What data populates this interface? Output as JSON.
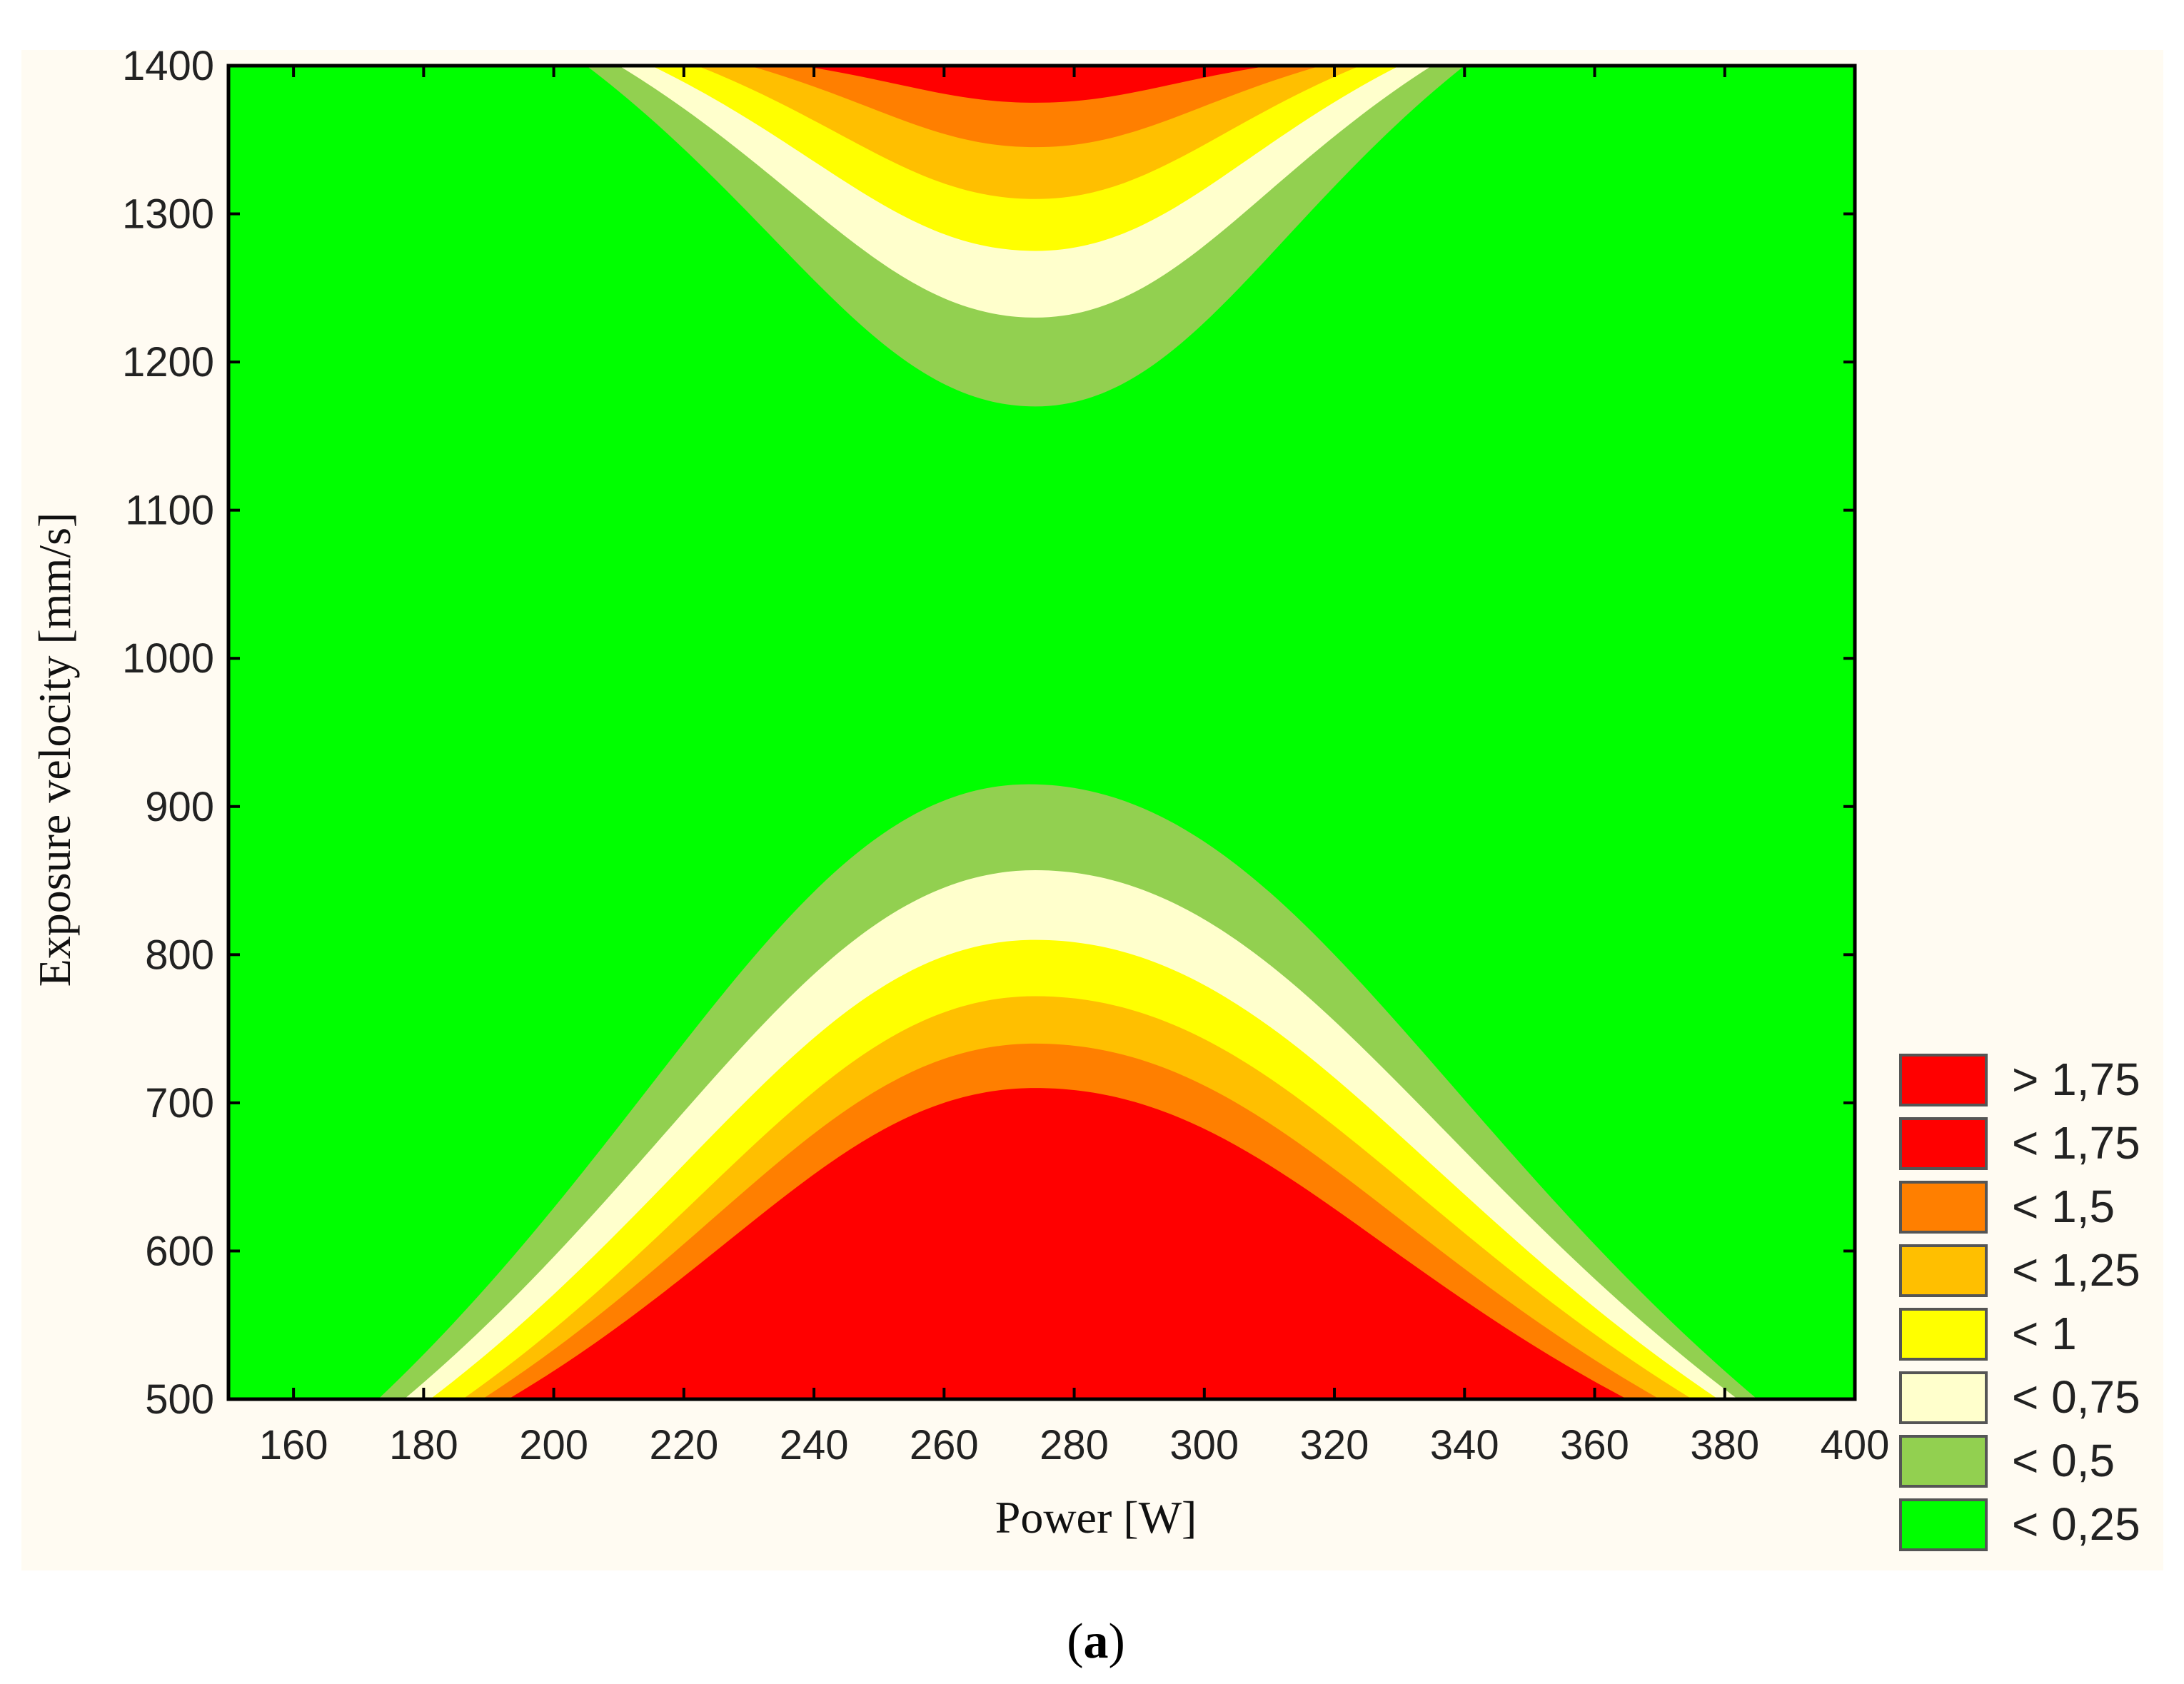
{
  "chart_data": {
    "type": "contour",
    "xlabel": "Power [W]",
    "ylabel": "Exposure velocity [mm/s]",
    "xlim": [
      150,
      400
    ],
    "ylim": [
      500,
      1400
    ],
    "x_ticks": [
      "160",
      "180",
      "200",
      "220",
      "240",
      "260",
      "280",
      "300",
      "320",
      "340",
      "360",
      "380",
      "400"
    ],
    "y_ticks": [
      "500",
      "600",
      "700",
      "800",
      "900",
      "1000",
      "1100",
      "1200",
      "1300",
      "1400"
    ],
    "legend": [
      {
        "label": "> 1,75",
        "color": "#ff0000"
      },
      {
        "label": "< 1,75",
        "color": "#ff0000"
      },
      {
        "label": "< 1,5",
        "color": "#ff7f00"
      },
      {
        "label": "< 1,25",
        "color": "#ffbf00"
      },
      {
        "label": "< 1",
        "color": "#ffff00"
      },
      {
        "label": "< 0,75",
        "color": "#ffffcc"
      },
      {
        "label": "< 0,5",
        "color": "#92d050"
      },
      {
        "label": "< 0,25",
        "color": "#00ff00"
      }
    ],
    "legend_position": "right-bottom",
    "grid": false,
    "regions": [
      {
        "side": "bottom",
        "level": "< 0,5",
        "color": "#92d050",
        "peak": [
          273,
          915
        ],
        "foot": [
          173,
          385
        ]
      },
      {
        "side": "bottom",
        "level": "< 0,75",
        "color": "#ffffcc",
        "peak": [
          274,
          857
        ],
        "foot": [
          177,
          382
        ]
      },
      {
        "side": "bottom",
        "level": "< 1",
        "color": "#ffff00",
        "peak": [
          274,
          810
        ],
        "foot": [
          181,
          379
        ]
      },
      {
        "side": "bottom",
        "level": "< 1,25",
        "color": "#ffbf00",
        "peak": [
          274,
          772
        ],
        "foot": [
          186,
          375
        ]
      },
      {
        "side": "bottom",
        "level": "< 1,5",
        "color": "#ff7f00",
        "peak": [
          274,
          740
        ],
        "foot": [
          189,
          370
        ]
      },
      {
        "side": "bottom",
        "level": "> 1,75",
        "color": "#ff0000",
        "peak": [
          274,
          710
        ],
        "foot": [
          193,
          365
        ]
      },
      {
        "side": "top",
        "level": "< 0,5",
        "color": "#92d050",
        "peak": [
          274,
          1170
        ],
        "foot": [
          205,
          340
        ]
      },
      {
        "side": "top",
        "level": "< 0,75",
        "color": "#ffffcc",
        "peak": [
          274,
          1230
        ],
        "foot": [
          210,
          335
        ]
      },
      {
        "side": "top",
        "level": "< 1",
        "color": "#ffff00",
        "peak": [
          274,
          1275
        ],
        "foot": [
          215,
          330
        ]
      },
      {
        "side": "top",
        "level": "< 1,25",
        "color": "#ffbf00",
        "peak": [
          274,
          1310
        ],
        "foot": [
          222,
          324
        ]
      },
      {
        "side": "top",
        "level": "< 1,5",
        "color": "#ff7f00",
        "peak": [
          274,
          1345
        ],
        "foot": [
          230,
          318
        ]
      },
      {
        "side": "top",
        "level": "> 1,75",
        "color": "#ff0000",
        "peak": [
          274,
          1375
        ],
        "foot": [
          238,
          310
        ]
      }
    ]
  },
  "panel_label": {
    "open": "(",
    "letter": "a",
    "close": ")"
  }
}
